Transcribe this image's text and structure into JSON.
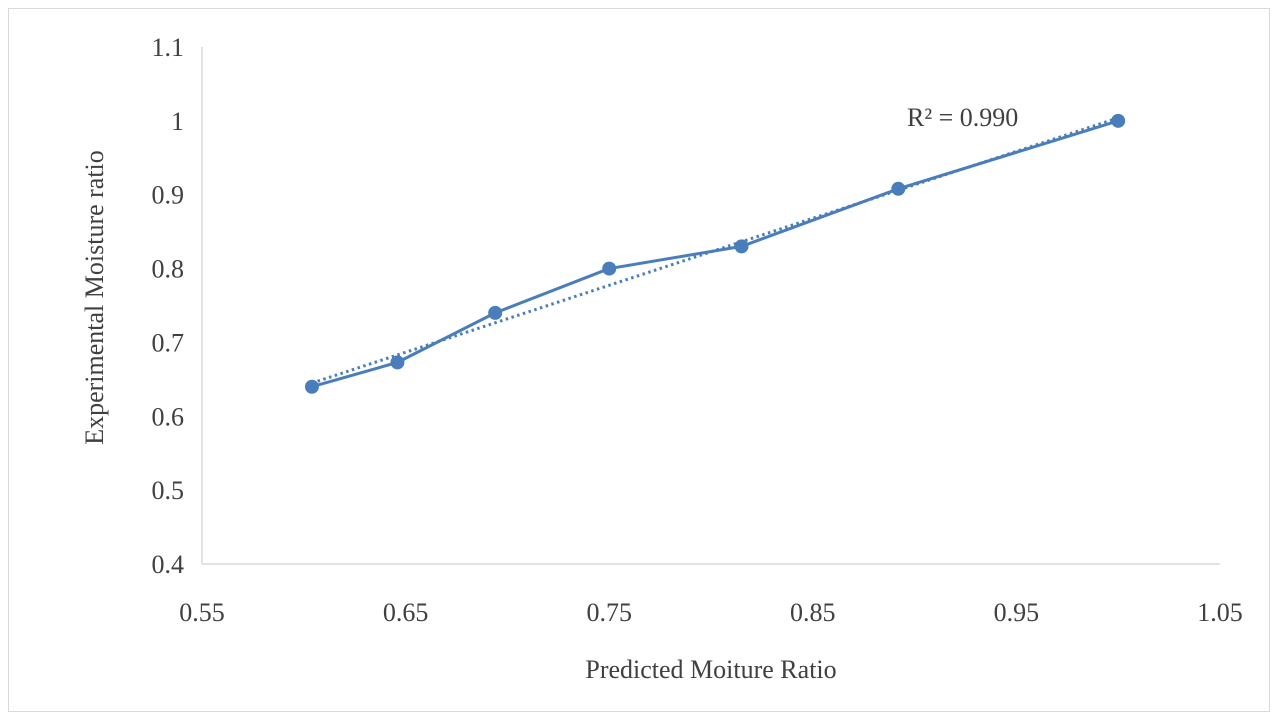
{
  "chart_data": {
    "type": "scatter",
    "title": "",
    "xlabel": "Predicted Moiture Ratio",
    "ylabel": "Experimental Moisture ratio",
    "xlim": [
      0.55,
      1.05
    ],
    "ylim": [
      0.4,
      1.1
    ],
    "x_ticks": [
      "0.55",
      "0.65",
      "0.75",
      "0.85",
      "0.95",
      "1.05"
    ],
    "y_ticks": [
      "0.4",
      "0.5",
      "0.6",
      "0.7",
      "0.8",
      "0.9",
      "1",
      "1.1"
    ],
    "grid": false,
    "legend": "none",
    "series": [
      {
        "x": [
          0.604,
          0.646,
          0.694,
          0.75,
          0.815,
          0.892,
          1.0
        ],
        "y": [
          0.64,
          0.673,
          0.74,
          0.8,
          0.83,
          0.908,
          1.0
        ],
        "color": "#4a7ebb",
        "markers": true,
        "line": "solid"
      }
    ],
    "trendline": {
      "type": "linear",
      "x_range": [
        0.604,
        1.0
      ],
      "y_range": [
        0.645,
        1.004
      ],
      "color": "#4a7ebb",
      "style": "dotted"
    },
    "annotations": [
      {
        "text": "R² = 0.990"
      }
    ]
  }
}
